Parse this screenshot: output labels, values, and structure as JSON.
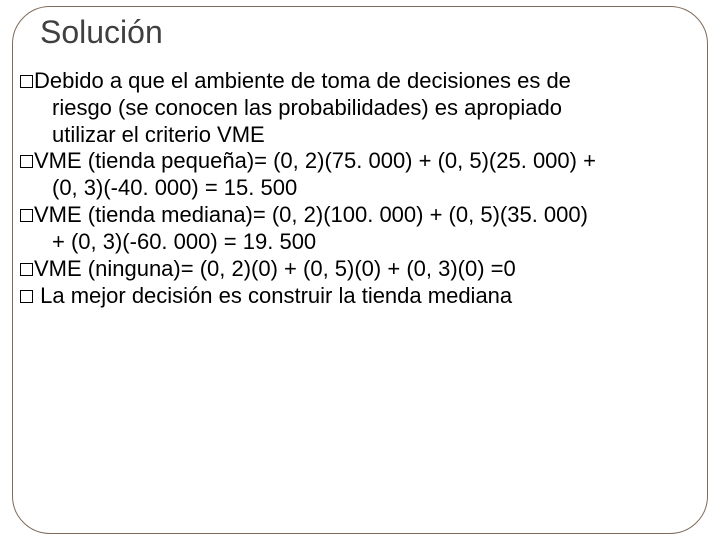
{
  "slide": {
    "title": "Solución",
    "title_color": "#404040",
    "title_fontsize": 32,
    "body_fontsize": 22,
    "body_color": "#000000",
    "background_color": "#ffffff",
    "frame_border_color": "#7f6b5a",
    "frame_border_radius": 38,
    "bullets": [
      {
        "lead": "Debido a que el ambiente de toma de decisiones es de",
        "rest": [
          "riesgo (se conocen las probabilidades) es apropiado",
          "utilizar el criterio VME"
        ]
      },
      {
        "lead": "VME (tienda pequeña)= (0, 2)(75. 000) + (0, 5)(25. 000) +",
        "rest": [
          "(0, 3)(-40. 000) = 15. 500"
        ]
      },
      {
        "lead": "VME (tienda mediana)= (0, 2)(100. 000) + (0, 5)(35. 000)",
        "rest": [
          "+ (0, 3)(-60. 000) = 19. 500"
        ]
      },
      {
        "lead": "VME (ninguna)= (0, 2)(0) + (0, 5)(0) + (0, 3)(0) =0",
        "rest": []
      },
      {
        "lead": " La mejor decisión es construir la tienda mediana",
        "rest": []
      }
    ]
  }
}
